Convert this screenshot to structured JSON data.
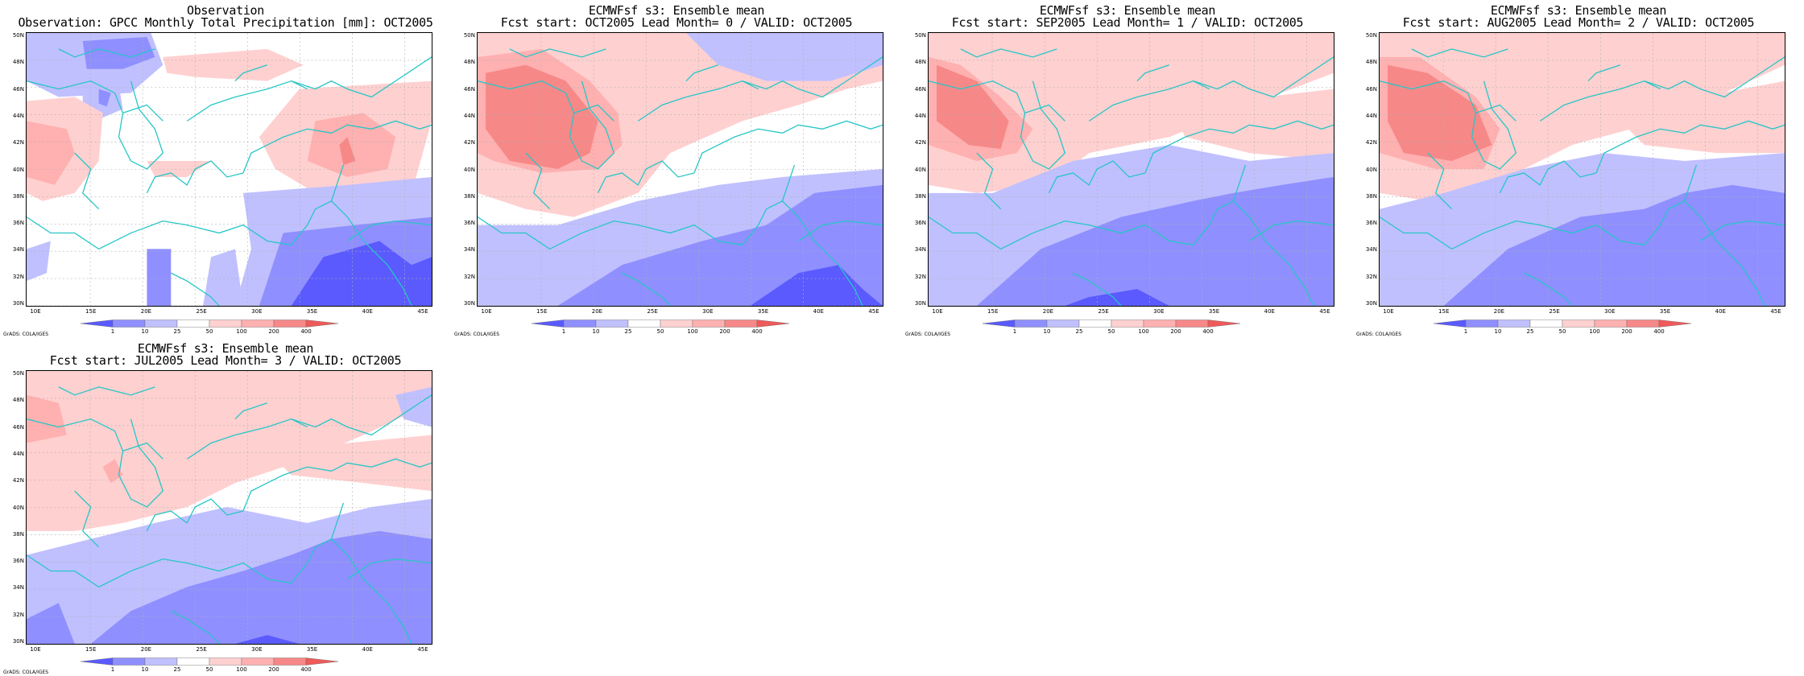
{
  "colors": {
    "coast": "#27c6c6",
    "grid": "#b0b0b0",
    "levels": [
      "#5a5aff",
      "#8f8fff",
      "#c0c0ff",
      "#ffffff",
      "#ffd0d0",
      "#ffb0b0",
      "#f78888",
      "#ef5a5a"
    ]
  },
  "lat_ticks": [
    "50N",
    "48N",
    "46N",
    "44N",
    "42N",
    "40N",
    "38N",
    "36N",
    "34N",
    "32N",
    "30N"
  ],
  "lon_ticks": [
    "10E",
    "15E",
    "20E",
    "25E",
    "30E",
    "35E",
    "40E",
    "45E"
  ],
  "colorbar": {
    "labels": [
      "1",
      "10",
      "25",
      "50",
      "100",
      "200",
      "400"
    ]
  },
  "credit": "GrADS: COLA/IGES",
  "panels": [
    {
      "title1": "Observation",
      "title2": "Observation: GPCC Monthly Total Precipitation [mm]: OCT2005"
    },
    {
      "title1": "ECMWFsf s3: Ensemble mean",
      "title2": "Fcst start: OCT2005  Lead Month= 0 / VALID: OCT2005"
    },
    {
      "title1": "ECMWFsf s3: Ensemble mean",
      "title2": "Fcst start: SEP2005  Lead Month= 1 / VALID: OCT2005"
    },
    {
      "title1": "ECMWFsf s3: Ensemble mean",
      "title2": "Fcst start: AUG2005  Lead Month= 2 / VALID: OCT2005"
    },
    {
      "title1": "ECMWFsf s3: Ensemble mean",
      "title2": "Fcst start: JUL2005  Lead Month= 3 / VALID: OCT2005"
    }
  ]
}
